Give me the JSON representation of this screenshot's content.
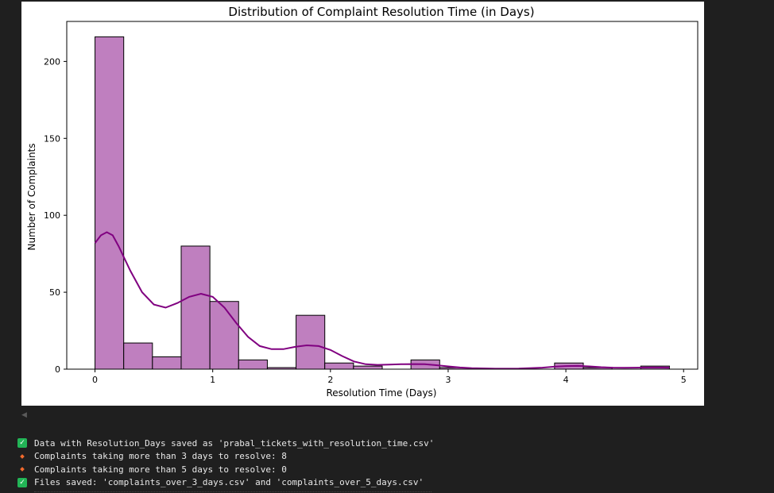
{
  "output": {
    "scroll_arrow": "◀",
    "console_lines": [
      {
        "icon": "check",
        "text": "Data with Resolution_Days saved as 'prabal_tickets_with_resolution_time.csv'"
      },
      {
        "icon": "diamond",
        "text": "Complaints taking more than 3 days to resolve: 8"
      },
      {
        "icon": "diamond",
        "text": "Complaints taking more than 5 days to resolve: 0"
      },
      {
        "icon": "check",
        "text": "Files saved: 'complaints_over_3_days.csv' and 'complaints_over_5_days.csv'"
      }
    ]
  },
  "chart_data": {
    "type": "bar",
    "title": "Distribution of Complaint Resolution Time (in Days)",
    "xlabel": "Resolution Time (Days)",
    "ylabel": "Number of Complaints",
    "xlim": [
      -0.24,
      5.12
    ],
    "ylim": [
      0,
      226
    ],
    "xticks": [
      0,
      1,
      2,
      3,
      4,
      5
    ],
    "yticks": [
      0,
      50,
      100,
      150,
      200
    ],
    "bin_width": 0.244,
    "bins": [
      {
        "x0": 0.0,
        "x1": 0.244,
        "count": 216
      },
      {
        "x0": 0.244,
        "x1": 0.488,
        "count": 17
      },
      {
        "x0": 0.488,
        "x1": 0.732,
        "count": 8
      },
      {
        "x0": 0.732,
        "x1": 0.976,
        "count": 80
      },
      {
        "x0": 0.976,
        "x1": 1.22,
        "count": 44
      },
      {
        "x0": 1.22,
        "x1": 1.464,
        "count": 6
      },
      {
        "x0": 1.464,
        "x1": 1.708,
        "count": 1
      },
      {
        "x0": 1.708,
        "x1": 1.952,
        "count": 35
      },
      {
        "x0": 1.952,
        "x1": 2.196,
        "count": 4
      },
      {
        "x0": 2.196,
        "x1": 2.44,
        "count": 2
      },
      {
        "x0": 2.44,
        "x1": 2.684,
        "count": 0
      },
      {
        "x0": 2.684,
        "x1": 2.928,
        "count": 6
      },
      {
        "x0": 2.928,
        "x1": 3.172,
        "count": 1
      },
      {
        "x0": 3.172,
        "x1": 3.416,
        "count": 0
      },
      {
        "x0": 3.416,
        "x1": 3.66,
        "count": 0
      },
      {
        "x0": 3.66,
        "x1": 3.904,
        "count": 0
      },
      {
        "x0": 3.904,
        "x1": 4.148,
        "count": 4
      },
      {
        "x0": 4.148,
        "x1": 4.392,
        "count": 1
      },
      {
        "x0": 4.392,
        "x1": 4.636,
        "count": 0
      },
      {
        "x0": 4.636,
        "x1": 4.88,
        "count": 2
      }
    ],
    "kde": [
      [
        0.0,
        82
      ],
      [
        0.05,
        87
      ],
      [
        0.1,
        89
      ],
      [
        0.15,
        87
      ],
      [
        0.2,
        80
      ],
      [
        0.3,
        64
      ],
      [
        0.4,
        50
      ],
      [
        0.5,
        42
      ],
      [
        0.6,
        40
      ],
      [
        0.7,
        43
      ],
      [
        0.8,
        47
      ],
      [
        0.9,
        49
      ],
      [
        1.0,
        47
      ],
      [
        1.1,
        40
      ],
      [
        1.2,
        30
      ],
      [
        1.3,
        21
      ],
      [
        1.4,
        15
      ],
      [
        1.5,
        13
      ],
      [
        1.6,
        13
      ],
      [
        1.7,
        14.5
      ],
      [
        1.8,
        15.5
      ],
      [
        1.9,
        15
      ],
      [
        2.0,
        12.5
      ],
      [
        2.1,
        8.5
      ],
      [
        2.2,
        5
      ],
      [
        2.3,
        3.2
      ],
      [
        2.4,
        2.8
      ],
      [
        2.5,
        3
      ],
      [
        2.6,
        3.2
      ],
      [
        2.7,
        3.3
      ],
      [
        2.8,
        3.2
      ],
      [
        2.9,
        2.6
      ],
      [
        3.0,
        1.8
      ],
      [
        3.1,
        1.1
      ],
      [
        3.2,
        0.6
      ],
      [
        3.4,
        0.3
      ],
      [
        3.6,
        0.4
      ],
      [
        3.8,
        1.0
      ],
      [
        3.9,
        1.6
      ],
      [
        4.0,
        2.0
      ],
      [
        4.1,
        2.1
      ],
      [
        4.2,
        1.8
      ],
      [
        4.3,
        1.3
      ],
      [
        4.4,
        1.0
      ],
      [
        4.5,
        0.9
      ],
      [
        4.6,
        1.0
      ],
      [
        4.7,
        1.1
      ],
      [
        4.8,
        1.1
      ],
      [
        4.88,
        1.0
      ]
    ],
    "bar_color": "#bf7fbf",
    "bar_edge_color": "#000000",
    "kde_color": "#800080",
    "grid": false,
    "legend": "none"
  }
}
